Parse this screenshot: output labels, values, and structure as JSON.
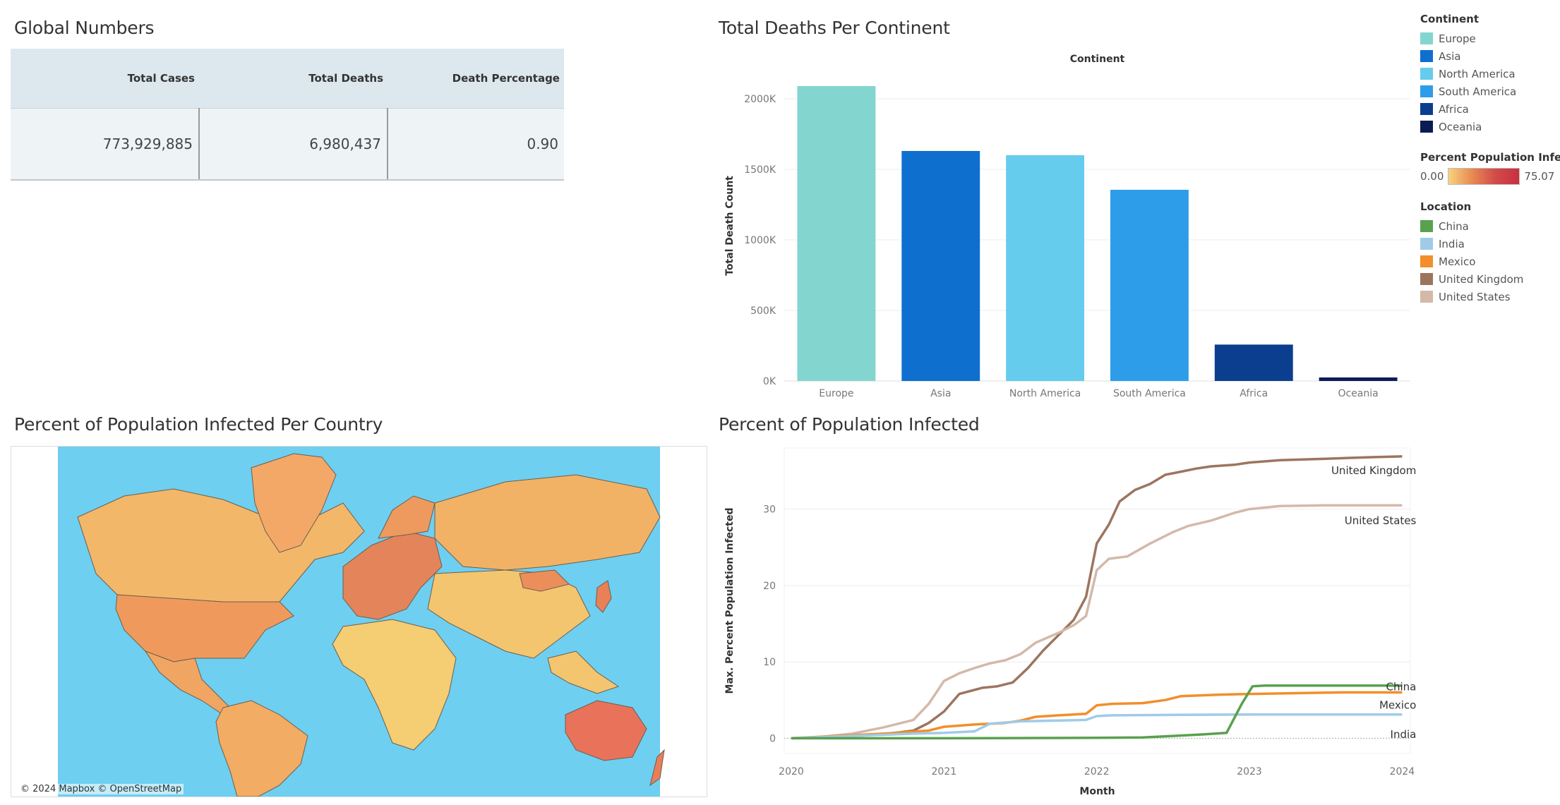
{
  "titles": {
    "global_numbers": "Global Numbers",
    "deaths_per_continent": "Total Deaths Per Continent",
    "map": "Percent of Population Infected Per Country",
    "line": "Percent of Population Infected"
  },
  "global_table": {
    "headers": [
      "Total Cases",
      "Total Deaths",
      "Death Percentage"
    ],
    "values": [
      "773,929,885",
      "6,980,437",
      "0.90"
    ]
  },
  "legend": {
    "continent": {
      "title": "Continent",
      "items": [
        {
          "label": "Europe",
          "color": "#83d5d0"
        },
        {
          "label": "Asia",
          "color": "#0e6fce"
        },
        {
          "label": "North America",
          "color": "#66ccee"
        },
        {
          "label": "South America",
          "color": "#2e9de9"
        },
        {
          "label": "Africa",
          "color": "#0c3e8f"
        },
        {
          "label": "Oceania",
          "color": "#0b1c55"
        }
      ]
    },
    "percent": {
      "title": "Percent Population Infect..",
      "min": "0.00",
      "max": "75.07"
    },
    "location": {
      "title": "Location",
      "items": [
        {
          "label": "China",
          "color": "#59a14f"
        },
        {
          "label": "India",
          "color": "#a0cbe8"
        },
        {
          "label": "Mexico",
          "color": "#f28e2b"
        },
        {
          "label": "United Kingdom",
          "color": "#9c755f"
        },
        {
          "label": "United States",
          "color": "#d4b9a9"
        }
      ]
    }
  },
  "map": {
    "attribution": "© 2024 Mapbox © OpenStreetMap",
    "ocean_color": "#6ecff0",
    "land_color": "#f3b769"
  },
  "chart_data": [
    {
      "type": "bar",
      "title": "Total Deaths Per Continent",
      "header": "Continent",
      "ylabel": "Total Death Count",
      "categories": [
        "Europe",
        "Asia",
        "North America",
        "South America",
        "Africa",
        "Oceania"
      ],
      "values": [
        2090000,
        1630000,
        1600000,
        1355000,
        258000,
        25000
      ],
      "colors": [
        "#83d5d0",
        "#0e6fce",
        "#66ccee",
        "#2e9de9",
        "#0c3e8f",
        "#0b1c55"
      ],
      "ylim": [
        0,
        2200000
      ],
      "yticks": [
        0,
        500000,
        1000000,
        1500000,
        2000000
      ],
      "ytick_labels": [
        "0K",
        "500K",
        "1000K",
        "1500K",
        "2000K"
      ],
      "grid": true
    },
    {
      "type": "line",
      "title": "Percent of Population Infected",
      "xlabel": "Month",
      "ylabel": "Max. Percent Population Infected",
      "xlim": [
        2020.0,
        2024.1
      ],
      "ylim": [
        -2,
        38
      ],
      "xticks": [
        2020,
        2021,
        2022,
        2023,
        2024
      ],
      "xtick_labels": [
        "2020",
        "2021",
        "2022",
        "2023",
        "2024"
      ],
      "yticks": [
        0,
        10,
        20,
        30
      ],
      "ytick_labels": [
        "0",
        "10",
        "20",
        "30"
      ],
      "series": [
        {
          "name": "United Kingdom",
          "color": "#9c755f",
          "x": [
            2020.0,
            2020.2,
            2020.4,
            2020.6,
            2020.8,
            2020.9,
            2021.0,
            2021.1,
            2021.25,
            2021.35,
            2021.45,
            2021.55,
            2021.65,
            2021.75,
            2021.85,
            2021.93,
            2022.0,
            2022.08,
            2022.15,
            2022.25,
            2022.35,
            2022.45,
            2022.55,
            2022.65,
            2022.75,
            2022.9,
            2023.0,
            2023.2,
            2023.5,
            2023.8,
            2024.0
          ],
          "y": [
            0,
            0.1,
            0.3,
            0.5,
            1.0,
            2.0,
            3.5,
            5.8,
            6.6,
            6.8,
            7.3,
            9.2,
            11.5,
            13.5,
            15.5,
            18.5,
            25.5,
            28,
            31,
            32.5,
            33.3,
            34.5,
            34.9,
            35.3,
            35.6,
            35.8,
            36.1,
            36.4,
            36.6,
            36.8,
            36.9
          ]
        },
        {
          "name": "United States",
          "color": "#d4b9a9",
          "x": [
            2020.0,
            2020.2,
            2020.4,
            2020.6,
            2020.8,
            2020.9,
            2021.0,
            2021.1,
            2021.2,
            2021.3,
            2021.4,
            2021.5,
            2021.6,
            2021.75,
            2021.85,
            2021.93,
            2022.0,
            2022.08,
            2022.2,
            2022.35,
            2022.5,
            2022.6,
            2022.75,
            2022.9,
            2023.0,
            2023.2,
            2023.5,
            2023.8,
            2024.0
          ],
          "y": [
            0,
            0.2,
            0.6,
            1.4,
            2.4,
            4.5,
            7.5,
            8.5,
            9.2,
            9.8,
            10.2,
            11,
            12.5,
            13.8,
            14.8,
            16,
            22,
            23.5,
            23.8,
            25.5,
            27,
            27.8,
            28.5,
            29.5,
            30,
            30.4,
            30.5,
            30.5,
            30.5
          ]
        },
        {
          "name": "Mexico",
          "color": "#f28e2b",
          "x": [
            2020.0,
            2020.3,
            2020.6,
            2020.9,
            2021.0,
            2021.2,
            2021.4,
            2021.5,
            2021.6,
            2021.75,
            2021.93,
            2022.0,
            2022.1,
            2022.3,
            2022.45,
            2022.55,
            2022.8,
            2023.0,
            2023.3,
            2023.6,
            2024.0
          ],
          "y": [
            0,
            0.3,
            0.6,
            1.0,
            1.5,
            1.8,
            2.0,
            2.3,
            2.8,
            3.0,
            3.2,
            4.3,
            4.5,
            4.6,
            5.0,
            5.5,
            5.7,
            5.8,
            5.9,
            6.0,
            6.0
          ]
        },
        {
          "name": "India",
          "color": "#a0cbe8",
          "x": [
            2020.0,
            2020.4,
            2020.8,
            2021.0,
            2021.2,
            2021.3,
            2021.5,
            2021.7,
            2021.93,
            2022.0,
            2022.1,
            2022.5,
            2023.0,
            2023.5,
            2024.0
          ],
          "y": [
            0,
            0.3,
            0.6,
            0.7,
            0.9,
            1.9,
            2.2,
            2.3,
            2.4,
            2.9,
            3.0,
            3.05,
            3.1,
            3.1,
            3.1
          ]
        },
        {
          "name": "China",
          "color": "#59a14f",
          "x": [
            2020.0,
            2021.0,
            2022.0,
            2022.3,
            2022.5,
            2022.7,
            2022.85,
            2022.95,
            2023.02,
            2023.1,
            2023.5,
            2024.0
          ],
          "y": [
            0,
            0,
            0.05,
            0.1,
            0.3,
            0.5,
            0.7,
            4.5,
            6.8,
            6.9,
            6.9,
            6.9
          ]
        }
      ]
    }
  ]
}
